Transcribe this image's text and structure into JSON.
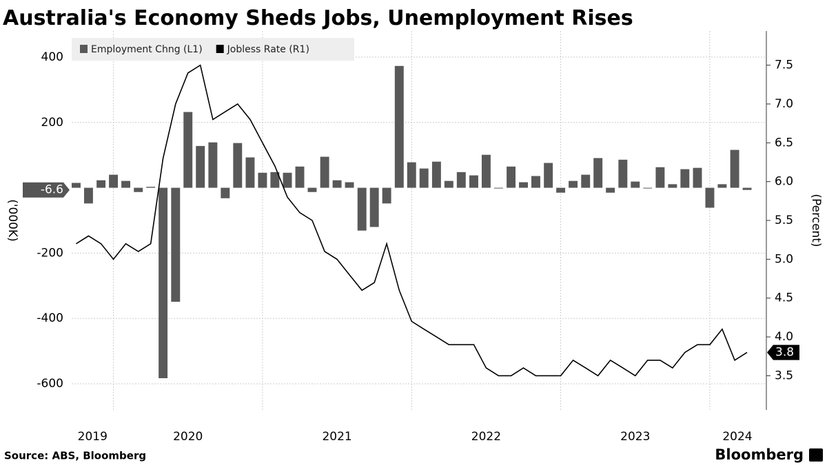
{
  "chart_data": {
    "type": "bar",
    "title": "Australia's Economy Sheds Jobs, Unemployment Rises",
    "source": "Source: ABS, Bloomberg",
    "brand": "Bloomberg",
    "ylabel": "('000K)",
    "y2label": "(Percent)",
    "x": [
      2019.75,
      2019.833,
      2019.917,
      2020,
      2020.083,
      2020.167,
      2020.25,
      2020.333,
      2020.417,
      2020.5,
      2020.583,
      2020.667,
      2020.75,
      2020.833,
      2020.917,
      2021,
      2021.083,
      2021.167,
      2021.25,
      2021.333,
      2021.417,
      2021.5,
      2021.583,
      2021.667,
      2021.75,
      2021.833,
      2021.917,
      2022,
      2022.083,
      2022.167,
      2022.25,
      2022.333,
      2022.417,
      2022.5,
      2022.583,
      2022.667,
      2022.75,
      2022.833,
      2022.917,
      2023,
      2023.083,
      2023.167,
      2023.25,
      2023.333,
      2023.417,
      2023.5,
      2023.583,
      2023.667,
      2023.75,
      2023.833,
      2023.917,
      2024,
      2024.083,
      2024.167,
      2024.25
    ],
    "xlim": [
      2019.72,
      2024.37
    ],
    "xticks": [
      2019,
      2020,
      2021,
      2022,
      2023,
      2024
    ],
    "ylim": [
      -680,
      480
    ],
    "yticks": [
      -600,
      -400,
      -200,
      200,
      400
    ],
    "y2lim": [
      3.06,
      7.94
    ],
    "y2ticks": [
      {
        "value": 3.5,
        "label": "3.5"
      },
      {
        "value": 4,
        "label": "4.0"
      },
      {
        "value": 4.5,
        "label": "4.5"
      },
      {
        "value": 5,
        "label": "5.0"
      },
      {
        "value": 5.5,
        "label": "5.5"
      },
      {
        "value": 6,
        "label": "6.0"
      },
      {
        "value": 6.5,
        "label": "6.5"
      },
      {
        "value": 7,
        "label": "7.0"
      },
      {
        "value": 7.5,
        "label": "7.5"
      }
    ],
    "grid": true,
    "legend": "top-left",
    "series": [
      {
        "name": "Employment Chng (L1)",
        "type": "bar",
        "axis": "y",
        "color": "#595959",
        "values": [
          15,
          -48,
          23,
          40,
          21,
          -13,
          3,
          -583,
          -349,
          232,
          128,
          139,
          -32,
          137,
          93,
          46,
          48,
          46,
          65,
          -13,
          95,
          23,
          17,
          -131,
          -120,
          -48,
          373,
          78,
          59,
          80,
          21,
          48,
          38,
          101,
          -2,
          65,
          17,
          36,
          76,
          -15,
          21,
          40,
          91,
          -15,
          86,
          19,
          -1,
          63,
          11,
          57,
          61,
          -61,
          11,
          116,
          -6.6
        ]
      },
      {
        "name": "Jobless Rate (R1)",
        "type": "line",
        "axis": "y2",
        "color": "#000000",
        "values": [
          5.2,
          5.3,
          5.2,
          5.0,
          5.2,
          5.1,
          5.2,
          6.3,
          7.0,
          7.4,
          7.5,
          6.8,
          6.9,
          7.0,
          6.8,
          6.5,
          6.2,
          5.8,
          5.6,
          5.5,
          5.1,
          5.0,
          4.8,
          4.6,
          4.7,
          5.2,
          4.6,
          4.2,
          4.1,
          4.0,
          3.9,
          3.9,
          3.9,
          3.6,
          3.5,
          3.5,
          3.6,
          3.5,
          3.5,
          3.5,
          3.7,
          3.6,
          3.5,
          3.7,
          3.6,
          3.5,
          3.7,
          3.7,
          3.6,
          3.8,
          3.9,
          3.9,
          4.1,
          3.7,
          3.8
        ]
      }
    ]
  }
}
